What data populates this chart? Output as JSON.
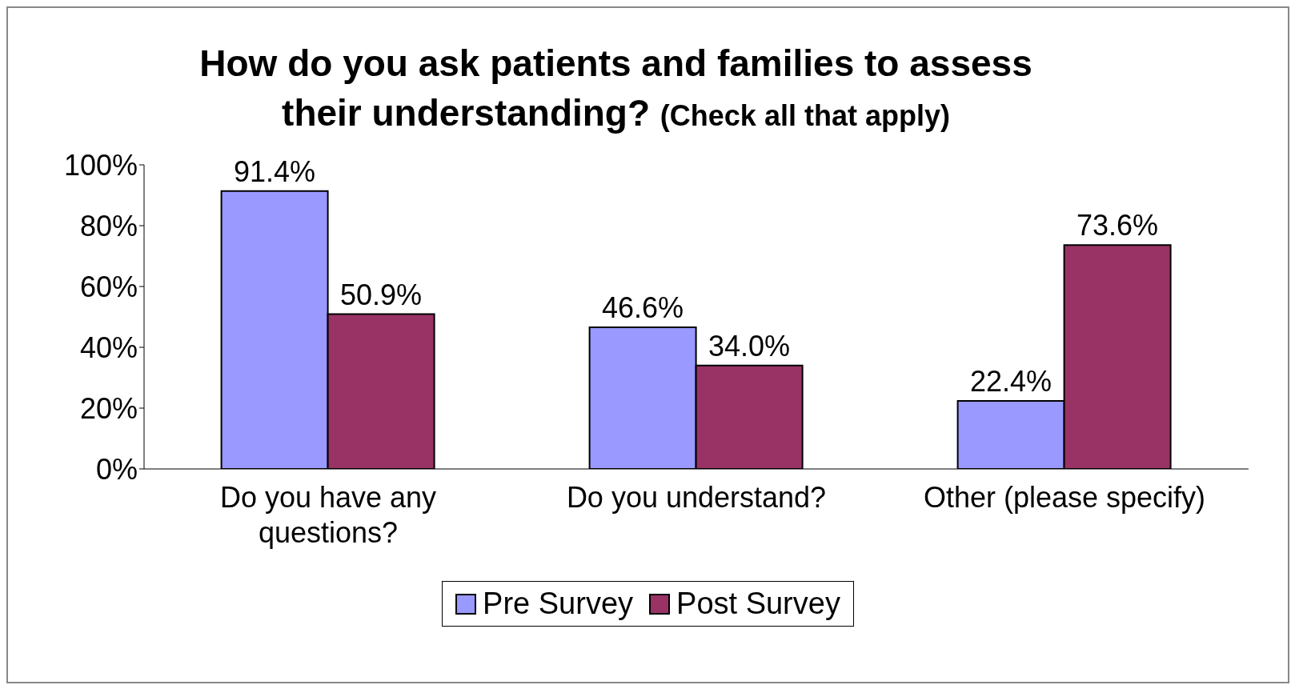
{
  "chart_data": {
    "type": "bar",
    "title": "How do you ask patients and families to assess their understanding?",
    "subtitle": "(Check all that apply)",
    "categories": [
      "Do you have any questions?",
      "Do you understand?",
      "Other (please specify)"
    ],
    "series": [
      {
        "name": "Pre Survey",
        "color": "#9999ff",
        "values": [
          91.4,
          46.6,
          22.4
        ],
        "value_labels": [
          "91.4%",
          "46.6%",
          "22.4%"
        ]
      },
      {
        "name": "Post Survey",
        "color": "#993366",
        "values": [
          50.9,
          34.0,
          73.6
        ],
        "value_labels": [
          "50.9%",
          "34.0%",
          "73.6%"
        ]
      }
    ],
    "ylim": [
      0,
      100
    ],
    "yticks": [
      {
        "value": 0,
        "label": "0%"
      },
      {
        "value": 20,
        "label": "20%"
      },
      {
        "value": 40,
        "label": "40%"
      },
      {
        "value": 60,
        "label": "60%"
      },
      {
        "value": 80,
        "label": "80%"
      },
      {
        "value": 100,
        "label": "100%"
      }
    ],
    "legend": "bottom"
  }
}
